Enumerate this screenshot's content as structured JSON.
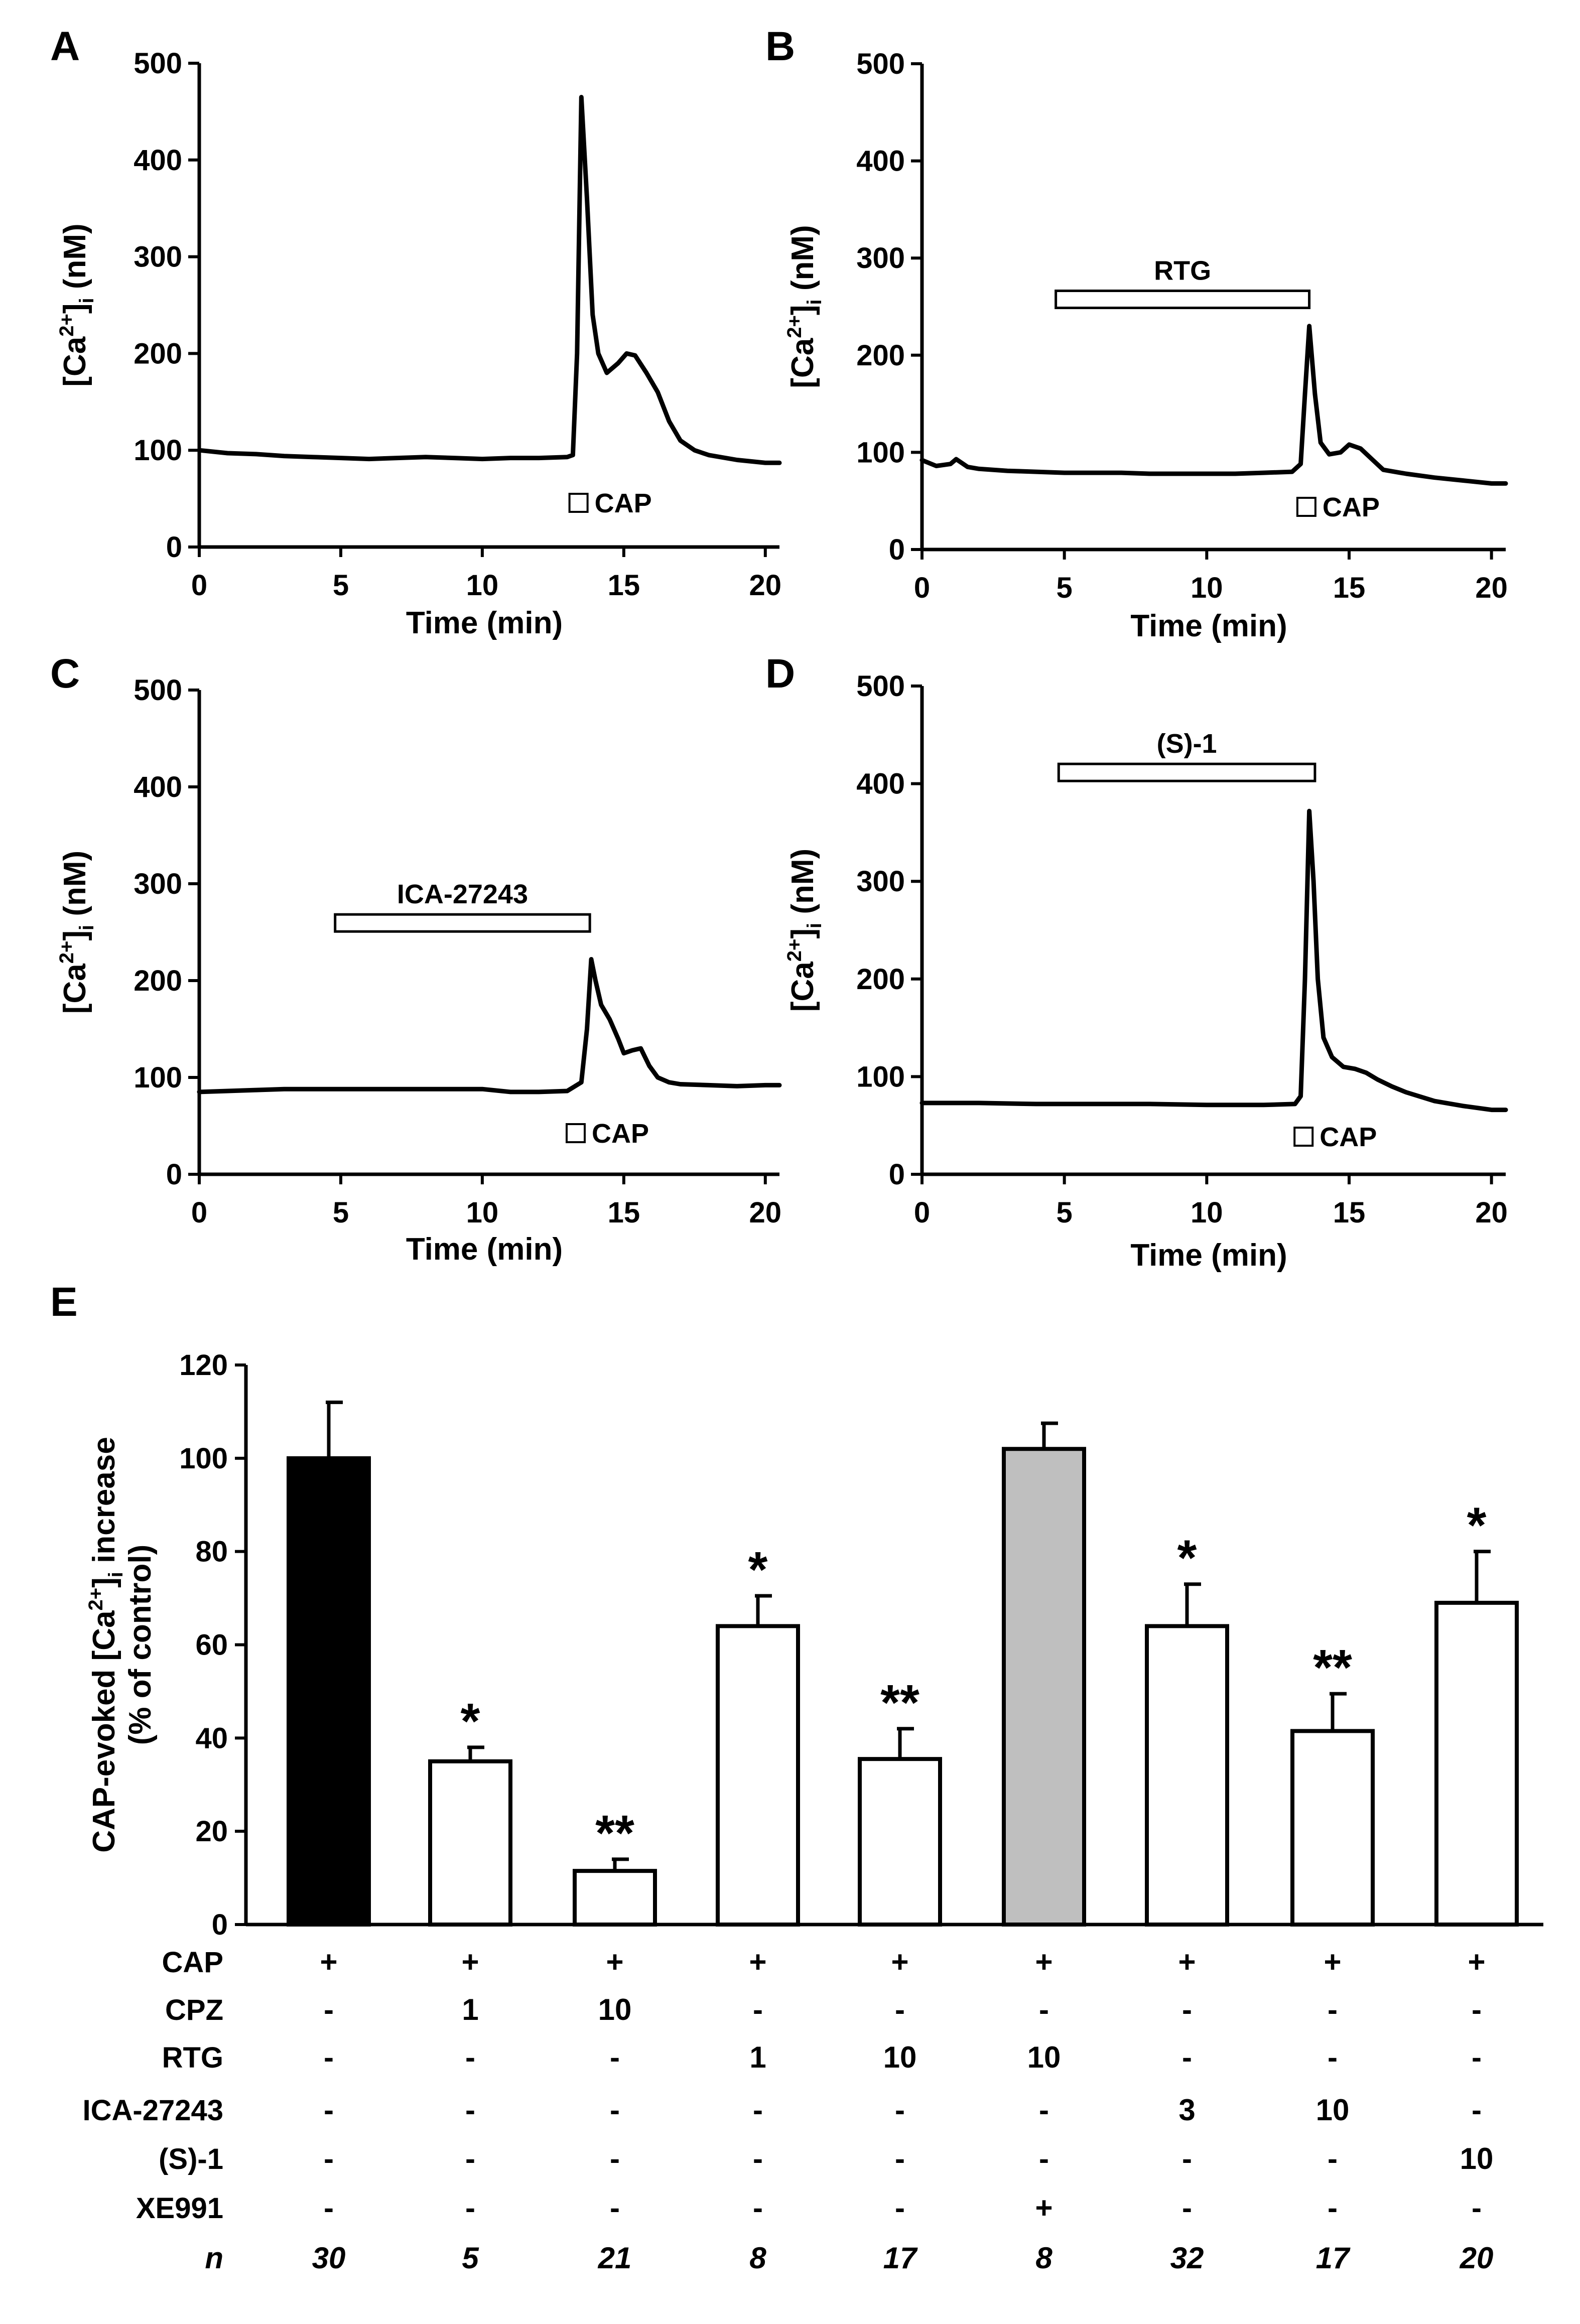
{
  "chart_data": [
    {
      "panel": "A",
      "type": "line",
      "xlabel_parts": [
        "Time (min)"
      ],
      "ylabel_parts": [
        "[Ca",
        "2+",
        "]",
        "i",
        " (nM)"
      ],
      "xlim": [
        0,
        20.5
      ],
      "ylim": [
        0,
        500
      ],
      "xticks": [
        0,
        5,
        10,
        15,
        20
      ],
      "yticks": [
        0,
        100,
        200,
        300,
        400,
        500
      ],
      "bar_label": null,
      "bar_range": null,
      "cap_label": "CAP",
      "cap_time": 13.4,
      "x": [
        0,
        1,
        2,
        3,
        4,
        5,
        6,
        7,
        8,
        9,
        10,
        11,
        12,
        13,
        13.2,
        13.35,
        13.5,
        13.7,
        13.9,
        14.1,
        14.4,
        14.8,
        15.1,
        15.4,
        15.8,
        16.2,
        16.6,
        17,
        17.5,
        18,
        19,
        20,
        20.5
      ],
      "y": [
        100,
        97,
        96,
        94,
        93,
        92,
        91,
        92,
        93,
        92,
        91,
        92,
        92,
        93,
        95,
        200,
        465,
        360,
        240,
        200,
        180,
        190,
        200,
        198,
        180,
        160,
        130,
        110,
        100,
        95,
        90,
        87,
        87
      ]
    },
    {
      "panel": "B",
      "type": "line",
      "xlabel_parts": [
        "Time (min)"
      ],
      "ylabel_parts": [
        "[Ca",
        "2+",
        "]",
        "i",
        " (nM)"
      ],
      "xlim": [
        0,
        20.5
      ],
      "ylim": [
        0,
        500
      ],
      "xticks": [
        0,
        5,
        10,
        15,
        20
      ],
      "yticks": [
        0,
        100,
        200,
        300,
        400,
        500
      ],
      "bar_label": "RTG",
      "bar_range": [
        4.7,
        13.6
      ],
      "cap_label": "CAP",
      "cap_time": 13.5,
      "x": [
        0,
        0.5,
        1,
        1.2,
        1.6,
        2,
        3,
        4,
        5,
        6,
        7,
        8,
        9,
        10,
        11,
        12,
        13,
        13.3,
        13.45,
        13.6,
        13.8,
        14.0,
        14.3,
        14.7,
        15.0,
        15.4,
        15.8,
        16.2,
        17,
        18,
        19,
        20,
        20.5
      ],
      "y": [
        92,
        86,
        88,
        93,
        85,
        83,
        81,
        80,
        79,
        79,
        79,
        78,
        78,
        78,
        78,
        79,
        80,
        88,
        160,
        230,
        160,
        110,
        98,
        100,
        108,
        104,
        93,
        82,
        78,
        74,
        71,
        68,
        68
      ]
    },
    {
      "panel": "C",
      "type": "line",
      "xlabel_parts": [
        "Time (min)"
      ],
      "ylabel_parts": [
        "[Ca",
        "2+",
        "]",
        "i",
        " (nM)"
      ],
      "xlim": [
        0,
        20.5
      ],
      "ylim": [
        0,
        500
      ],
      "xticks": [
        0,
        5,
        10,
        15,
        20
      ],
      "yticks": [
        0,
        100,
        200,
        300,
        400,
        500
      ],
      "bar_label": "ICA-27243",
      "bar_range": [
        4.8,
        13.8
      ],
      "cap_label": "CAP",
      "cap_time": 13.3,
      "x": [
        0,
        1,
        2,
        3,
        4,
        5,
        6,
        7,
        8,
        9,
        10,
        11,
        12,
        13,
        13.5,
        13.7,
        13.85,
        14.0,
        14.2,
        14.5,
        14.8,
        15.0,
        15.3,
        15.6,
        15.9,
        16.2,
        16.6,
        17,
        18,
        19,
        20,
        20.5
      ],
      "y": [
        85,
        86,
        87,
        88,
        88,
        88,
        88,
        88,
        88,
        88,
        88,
        85,
        85,
        86,
        95,
        150,
        222,
        200,
        175,
        160,
        140,
        125,
        128,
        130,
        112,
        100,
        95,
        93,
        92,
        91,
        92,
        92
      ]
    },
    {
      "panel": "D",
      "type": "line",
      "xlabel_parts": [
        "Time (min)"
      ],
      "ylabel_parts": [
        "[Ca",
        "2+",
        "]",
        "i",
        " (nM)"
      ],
      "xlim": [
        0,
        20.5
      ],
      "ylim": [
        0,
        500
      ],
      "xticks": [
        0,
        5,
        10,
        15,
        20
      ],
      "yticks": [
        0,
        100,
        200,
        300,
        400,
        500
      ],
      "bar_label": "(S)-1",
      "bar_range": [
        4.8,
        13.8
      ],
      "cap_label": "CAP",
      "cap_time": 13.4,
      "x": [
        0,
        2,
        4,
        6,
        8,
        10,
        12,
        13.1,
        13.3,
        13.45,
        13.6,
        13.75,
        13.9,
        14.1,
        14.4,
        14.8,
        15.2,
        15.6,
        16,
        16.5,
        17,
        18,
        19,
        20,
        20.5
      ],
      "y": [
        73,
        73,
        72,
        72,
        72,
        71,
        71,
        72,
        80,
        200,
        372,
        300,
        200,
        140,
        120,
        110,
        108,
        104,
        97,
        90,
        84,
        75,
        70,
        66,
        66
      ]
    },
    {
      "panel": "E",
      "type": "bar",
      "ylabel_lines": [
        [
          "CAP-evoked [Ca",
          "2+",
          "]",
          "i",
          " increase"
        ],
        [
          "(% of control)"
        ]
      ],
      "ylim": [
        0,
        120
      ],
      "yticks": [
        0,
        20,
        40,
        60,
        80,
        100,
        120
      ],
      "values": [
        100,
        35,
        11.5,
        64,
        35.5,
        102,
        64,
        41.5,
        69
      ],
      "errors": [
        12,
        3,
        2.5,
        6.5,
        6.5,
        5.5,
        9,
        8,
        11
      ],
      "colors": [
        "#000000",
        "#ffffff",
        "#ffffff",
        "#ffffff",
        "#ffffff",
        "#bfbfbf",
        "#ffffff",
        "#ffffff",
        "#ffffff"
      ],
      "significance": [
        "",
        "*",
        "**",
        "*",
        "**",
        "",
        "*",
        "**",
        "*"
      ],
      "table_rows": [
        {
          "label": "CAP",
          "cells": [
            "+",
            "+",
            "+",
            "+",
            "+",
            "+",
            "+",
            "+",
            "+"
          ]
        },
        {
          "label": "CPZ",
          "cells": [
            "-",
            "1",
            "10",
            "-",
            "-",
            "-",
            "-",
            "-",
            "-"
          ]
        },
        {
          "label": "RTG",
          "cells": [
            "-",
            "-",
            "-",
            "1",
            "10",
            "10",
            "-",
            "-",
            "-"
          ]
        },
        {
          "label": "ICA-27243",
          "cells": [
            "-",
            "-",
            "-",
            "-",
            "-",
            "-",
            "3",
            "10",
            "-"
          ]
        },
        {
          "label": "(S)-1",
          "cells": [
            "-",
            "-",
            "-",
            "-",
            "-",
            "-",
            "-",
            "-",
            "10"
          ]
        },
        {
          "label": "XE991",
          "cells": [
            "-",
            "-",
            "-",
            "-",
            "-",
            "+",
            "-",
            "-",
            "-"
          ]
        },
        {
          "label": "n",
          "cells": [
            "30",
            "5",
            "21",
            "8",
            "17",
            "8",
            "32",
            "17",
            "20"
          ],
          "italic": true
        }
      ]
    }
  ]
}
